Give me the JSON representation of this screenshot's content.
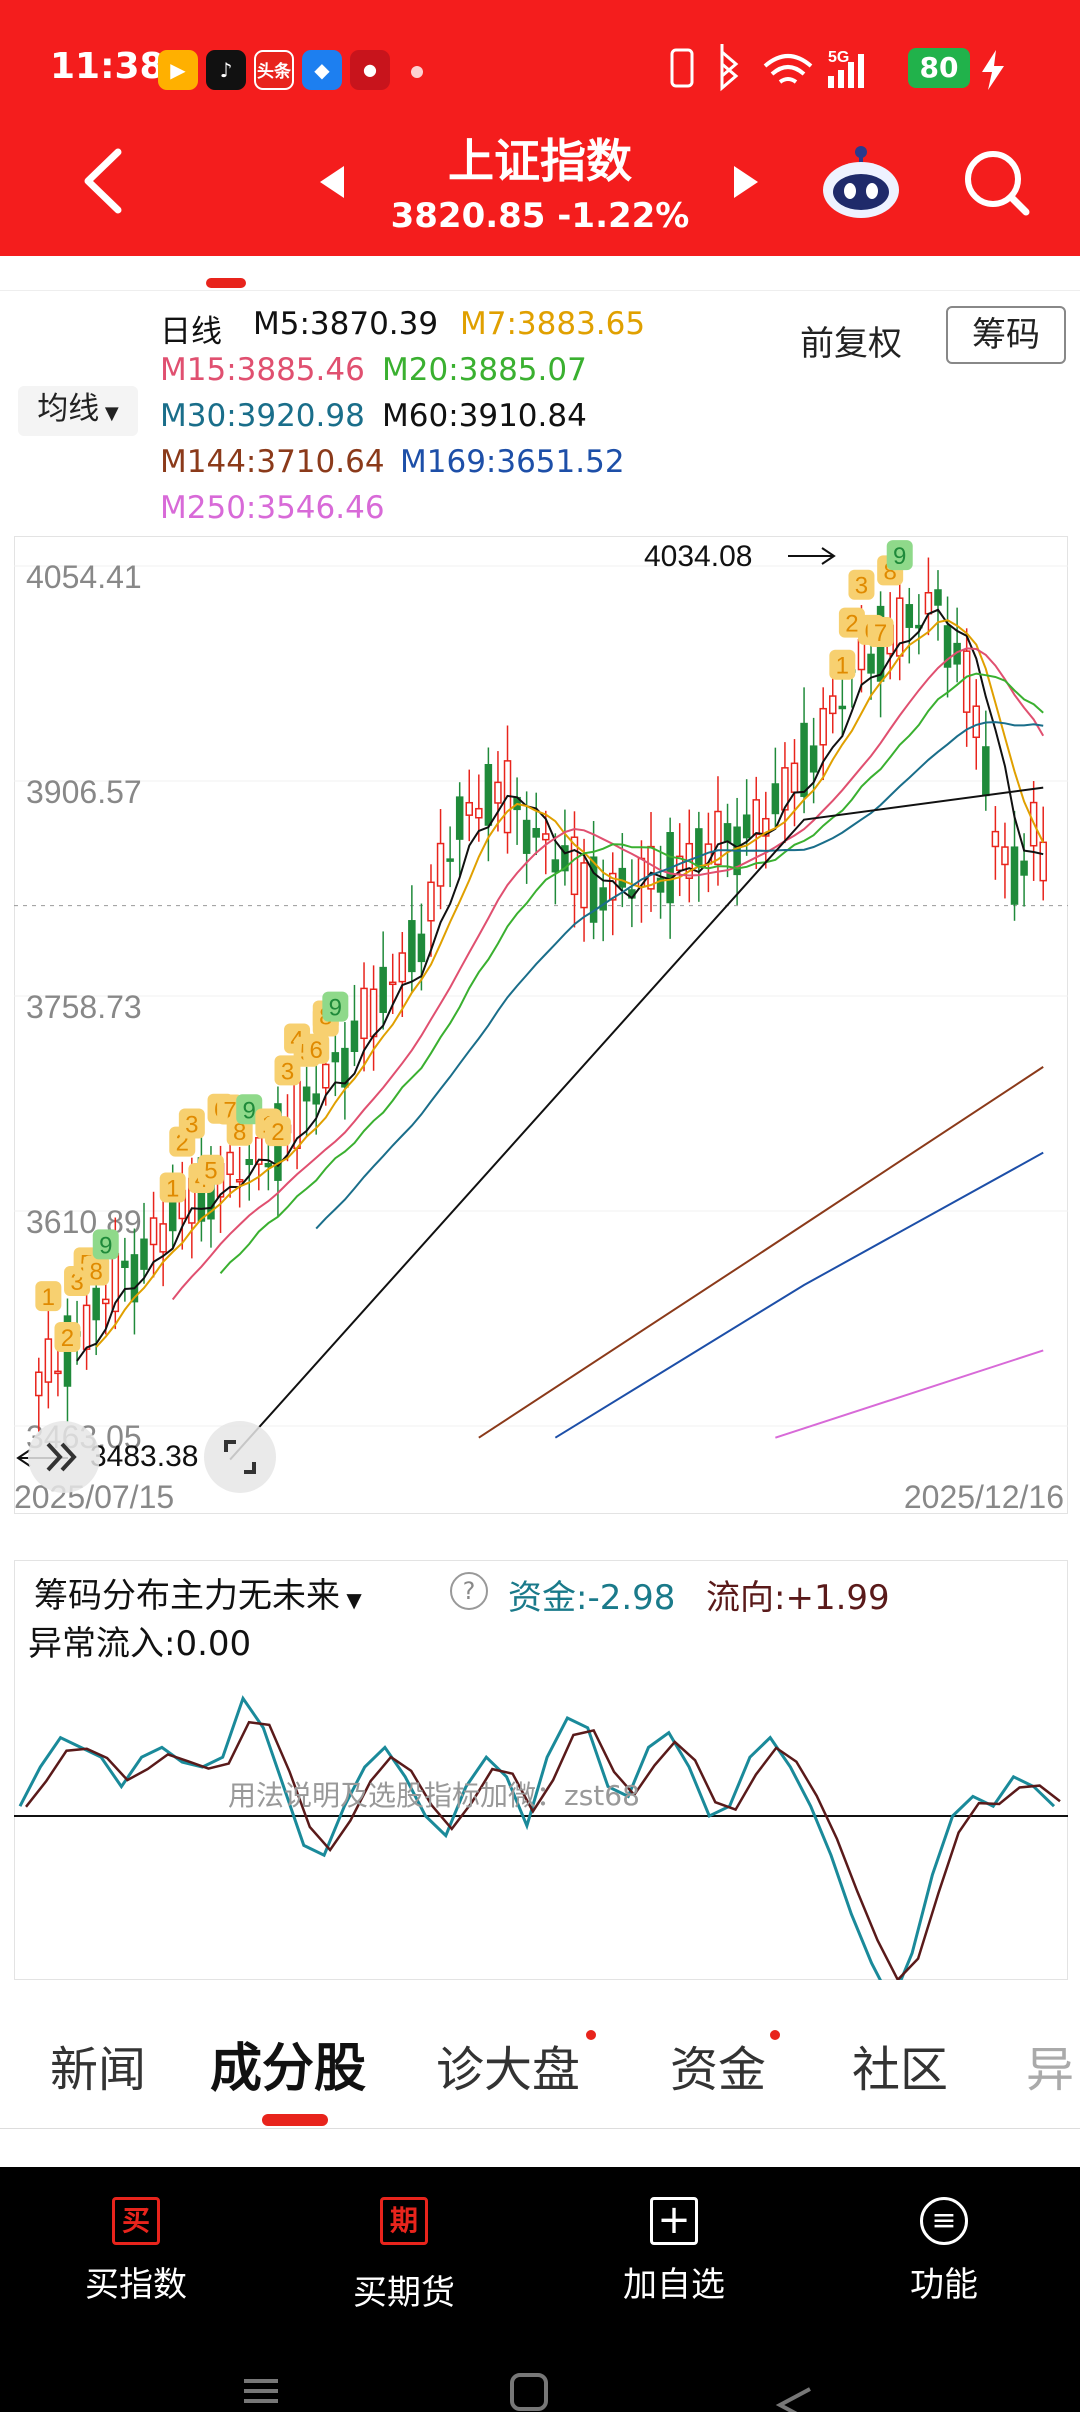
{
  "status_bar": {
    "time": "11:38",
    "battery": "80",
    "app_icons": [
      "video-app-icon",
      "tiktok-icon",
      "toutiao-icon",
      "blue-app-icon",
      "red-app-icon"
    ],
    "toutiao_text": "头条",
    "signal_text": "5G"
  },
  "header": {
    "title": "上证指数",
    "subtitle": "3820.85  -1.22%"
  },
  "ma_panel": {
    "period": "日线",
    "selector": "均线",
    "adjust": "前复权",
    "chips_button": "筹码",
    "lines": [
      {
        "label": "M5:3870.39",
        "color": "#111111"
      },
      {
        "label": "M7:3883.65",
        "color": "#e0a000"
      },
      {
        "label": "M15:3885.46",
        "color": "#e05070"
      },
      {
        "label": "M20:3885.07",
        "color": "#3ab030"
      },
      {
        "label": "M30:3920.98",
        "color": "#1a6e8a"
      },
      {
        "label": "M60:3910.84",
        "color": "#111111"
      },
      {
        "label": "M144:3710.64",
        "color": "#8b3a1a"
      },
      {
        "label": "M169:3651.52",
        "color": "#1d4fa8"
      },
      {
        "label": "M250:3546.46",
        "color": "#d86ad8"
      }
    ]
  },
  "chart_data": [
    {
      "type": "candlestick",
      "y_ticks": [
        "4054.41",
        "3906.57",
        "3758.73",
        "3610.89",
        "3463.05"
      ],
      "ylim": [
        3463.05,
        4054.41
      ],
      "annotations": {
        "high": "4034.08",
        "low": "3483.38"
      },
      "x_labels": [
        "2025/07/15",
        "2025/12/16"
      ],
      "current_price": 3820.85
    },
    {
      "type": "line",
      "title": "筹码分布主力无未来",
      "labels": {
        "fund": "资金:-2.98",
        "flow": "流向:+1.99",
        "abnormal": "异常流入:0.00"
      },
      "watermark": "用法说明及选股指标加微：zst68"
    }
  ],
  "tabs": [
    {
      "label": "新闻",
      "active": false
    },
    {
      "label": "成分股",
      "active": true
    },
    {
      "label": "诊大盘",
      "active": false,
      "dot": true
    },
    {
      "label": "资金",
      "active": false,
      "dot": true
    },
    {
      "label": "社区",
      "active": false
    },
    {
      "label": "异",
      "active": false
    }
  ],
  "bottom_bar": [
    {
      "label": "买指数",
      "icon_text": "买"
    },
    {
      "label": "买期货",
      "icon_text": "期"
    },
    {
      "label": "加自选",
      "icon_text": "+"
    },
    {
      "label": "功能",
      "icon_text": "≡"
    }
  ],
  "colors": {
    "header": "#f41d1d",
    "up": "#e8241c",
    "down": "#1f8a3a"
  }
}
